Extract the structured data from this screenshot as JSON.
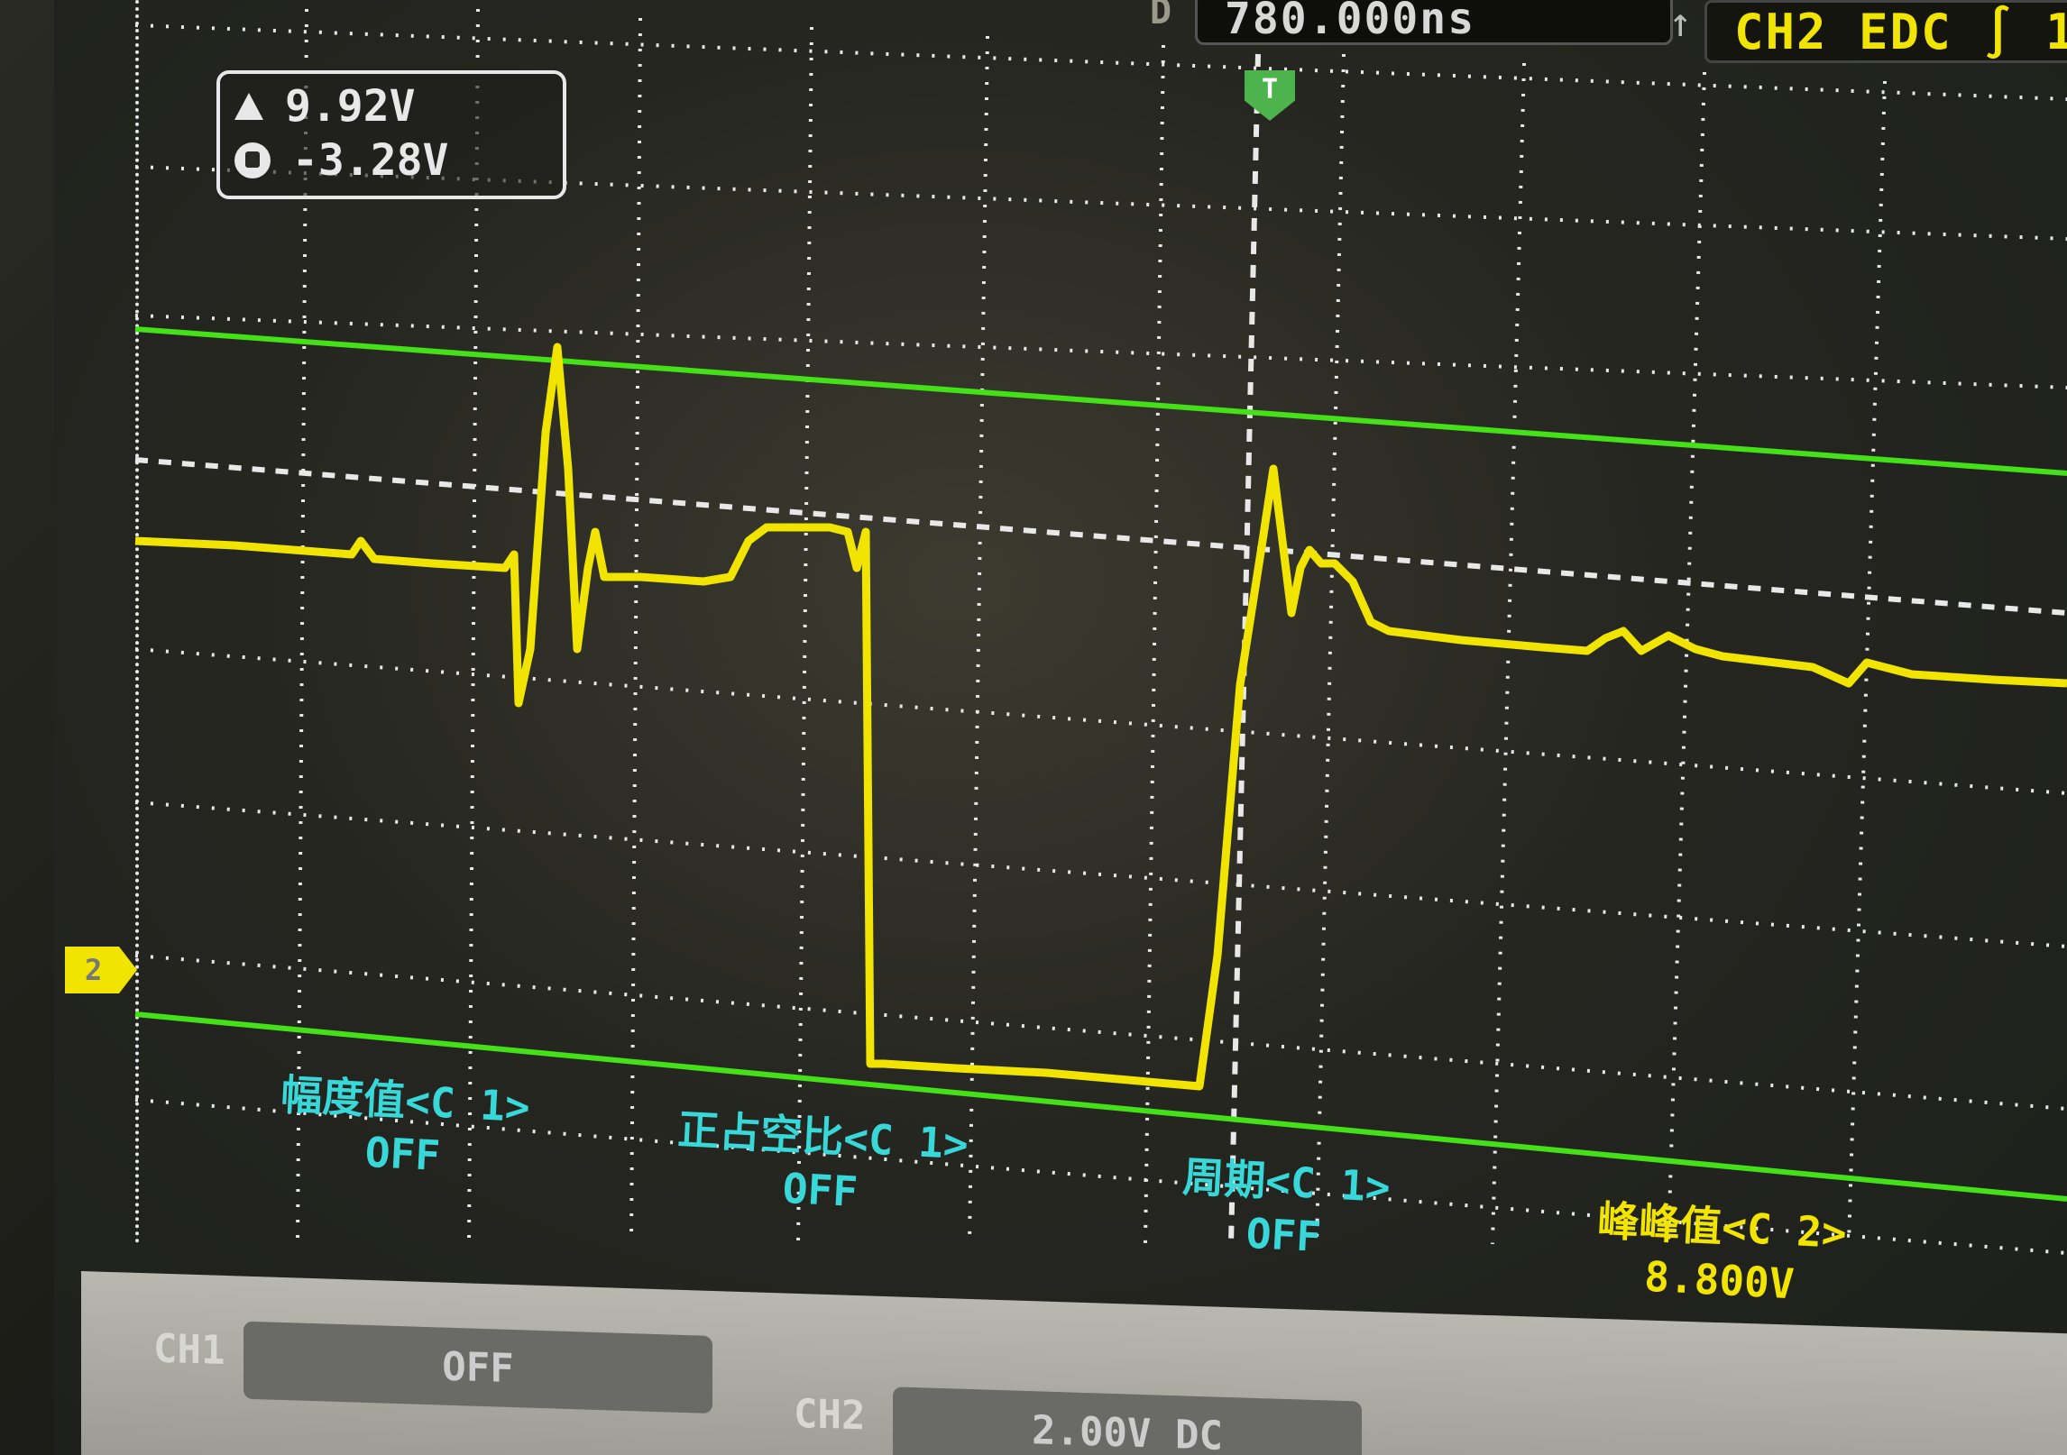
{
  "topbar": {
    "timebase_prefix": "D",
    "timebase_value": "780.000ns",
    "trigger_label": "CH2 EDC ∫ 1"
  },
  "cursors": {
    "delta": "9.92V",
    "reference": "-3.28V"
  },
  "markers": {
    "trigger_position": "T",
    "channel_marker": "2"
  },
  "measurements": [
    {
      "label": "幅度值<C 1>",
      "value": "OFF",
      "color": "#38d8d8"
    },
    {
      "label": "正占空比<C 1>",
      "value": "OFF",
      "color": "#38d8d8"
    },
    {
      "label": "周期<C 1>",
      "value": "OFF",
      "color": "#38d8d8"
    },
    {
      "label": "峰峰值<C 2>",
      "value": "8.800V",
      "color": "#f0e400"
    }
  ],
  "channels": [
    {
      "name": "CH1",
      "setting": "OFF"
    },
    {
      "name": "CH2",
      "setting": "2.00V DC"
    }
  ],
  "colors": {
    "trace": "#f0e400",
    "cursor_lines": "#44e018",
    "grid": "#e8e8e8",
    "measure_c1": "#38d8d8"
  }
}
